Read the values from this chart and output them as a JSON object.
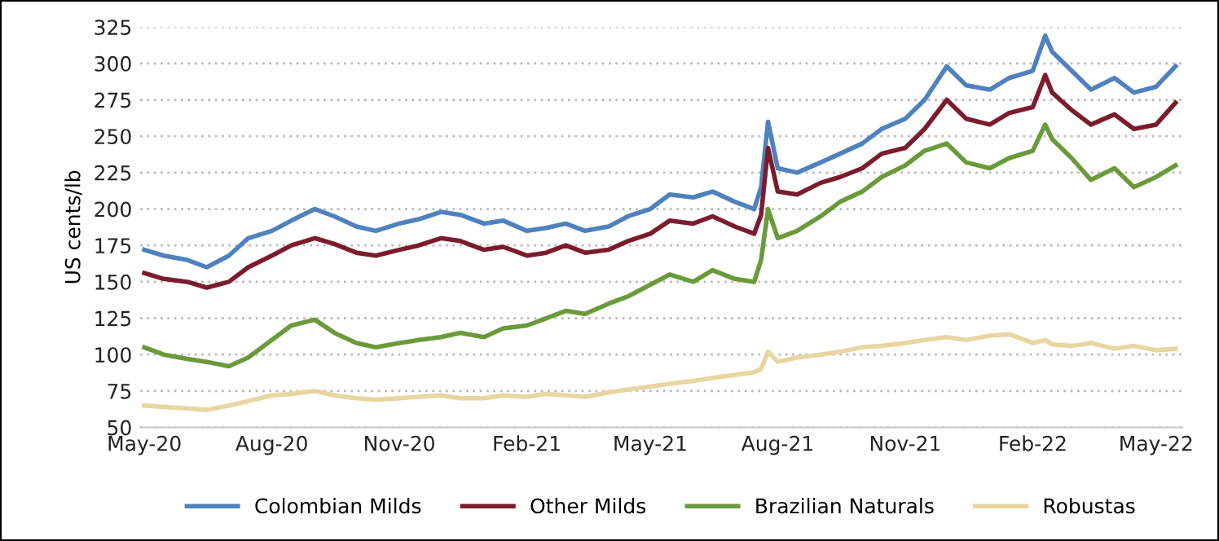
{
  "chart_data": {
    "type": "line",
    "ylabel": "US cents/lb",
    "x": [
      "2020-05-01",
      "2020-05-15",
      "2020-06-01",
      "2020-06-15",
      "2020-07-01",
      "2020-07-15",
      "2020-08-01",
      "2020-08-15",
      "2020-09-01",
      "2020-09-15",
      "2020-10-01",
      "2020-10-15",
      "2020-11-01",
      "2020-11-15",
      "2020-12-01",
      "2020-12-15",
      "2021-01-01",
      "2021-01-15",
      "2021-02-01",
      "2021-02-15",
      "2021-03-01",
      "2021-03-15",
      "2021-04-01",
      "2021-04-15",
      "2021-05-01",
      "2021-05-15",
      "2021-06-01",
      "2021-06-15",
      "2021-07-01",
      "2021-07-15",
      "2021-07-20",
      "2021-07-25",
      "2021-08-01",
      "2021-08-15",
      "2021-09-01",
      "2021-09-15",
      "2021-10-01",
      "2021-10-15",
      "2021-11-01",
      "2021-11-15",
      "2021-12-01",
      "2021-12-15",
      "2022-01-01",
      "2022-01-15",
      "2022-02-01",
      "2022-02-10",
      "2022-02-15",
      "2022-03-01",
      "2022-03-15",
      "2022-04-01",
      "2022-04-15",
      "2022-05-01",
      "2022-05-15"
    ],
    "series": [
      {
        "name": "Colombian Milds",
        "color": "#4f81bd",
        "values": [
          172,
          168,
          165,
          160,
          168,
          180,
          185,
          192,
          200,
          195,
          188,
          185,
          190,
          193,
          198,
          196,
          190,
          192,
          185,
          187,
          190,
          185,
          188,
          195,
          200,
          210,
          208,
          212,
          205,
          200,
          215,
          260,
          228,
          225,
          232,
          238,
          245,
          255,
          262,
          275,
          298,
          285,
          282,
          290,
          295,
          319,
          308,
          295,
          282,
          290,
          280,
          284,
          298
        ]
      },
      {
        "name": "Other Milds",
        "color": "#7b1c2e",
        "values": [
          156,
          152,
          150,
          146,
          150,
          160,
          168,
          175,
          180,
          176,
          170,
          168,
          172,
          175,
          180,
          178,
          172,
          174,
          168,
          170,
          175,
          170,
          172,
          178,
          183,
          192,
          190,
          195,
          188,
          183,
          196,
          242,
          212,
          210,
          218,
          222,
          228,
          238,
          242,
          255,
          275,
          262,
          258,
          266,
          270,
          292,
          280,
          268,
          258,
          265,
          255,
          258,
          273
        ]
      },
      {
        "name": "Brazilian Naturals",
        "color": "#6a9a3a",
        "values": [
          105,
          100,
          97,
          95,
          92,
          98,
          110,
          120,
          124,
          115,
          108,
          105,
          108,
          110,
          112,
          115,
          112,
          118,
          120,
          125,
          130,
          128,
          135,
          140,
          148,
          155,
          150,
          158,
          152,
          150,
          165,
          200,
          180,
          185,
          195,
          205,
          212,
          222,
          230,
          240,
          245,
          232,
          228,
          235,
          240,
          258,
          248,
          235,
          220,
          228,
          215,
          222,
          230
        ]
      },
      {
        "name": "Robustas",
        "color": "#e8d5a0",
        "values": [
          65,
          64,
          63,
          62,
          65,
          68,
          72,
          73,
          75,
          72,
          70,
          69,
          70,
          71,
          72,
          70,
          70,
          72,
          71,
          73,
          72,
          71,
          74,
          76,
          78,
          80,
          82,
          84,
          86,
          88,
          90,
          102,
          95,
          98,
          100,
          102,
          105,
          106,
          108,
          110,
          112,
          110,
          113,
          114,
          108,
          110,
          107,
          106,
          108,
          104,
          106,
          103,
          104
        ]
      }
    ],
    "xlim": [
      "2020-04-28",
      "2022-05-20"
    ],
    "xticks": [
      {
        "value": "2020-05-01",
        "label": "May-20"
      },
      {
        "value": "2020-08-01",
        "label": "Aug-20"
      },
      {
        "value": "2020-11-01",
        "label": "Nov-20"
      },
      {
        "value": "2021-02-01",
        "label": "Feb-21"
      },
      {
        "value": "2021-05-01",
        "label": "May-21"
      },
      {
        "value": "2021-08-01",
        "label": "Aug-21"
      },
      {
        "value": "2021-11-01",
        "label": "Nov-21"
      },
      {
        "value": "2022-02-01",
        "label": "Feb-22"
      },
      {
        "value": "2022-05-01",
        "label": "May-22"
      }
    ],
    "ylim": [
      50,
      325
    ],
    "yticks": [
      50,
      75,
      100,
      125,
      150,
      175,
      200,
      225,
      250,
      275,
      300,
      325
    ],
    "grid": "y",
    "legend": "bottom",
    "line_style": "solid",
    "marker": "none"
  }
}
